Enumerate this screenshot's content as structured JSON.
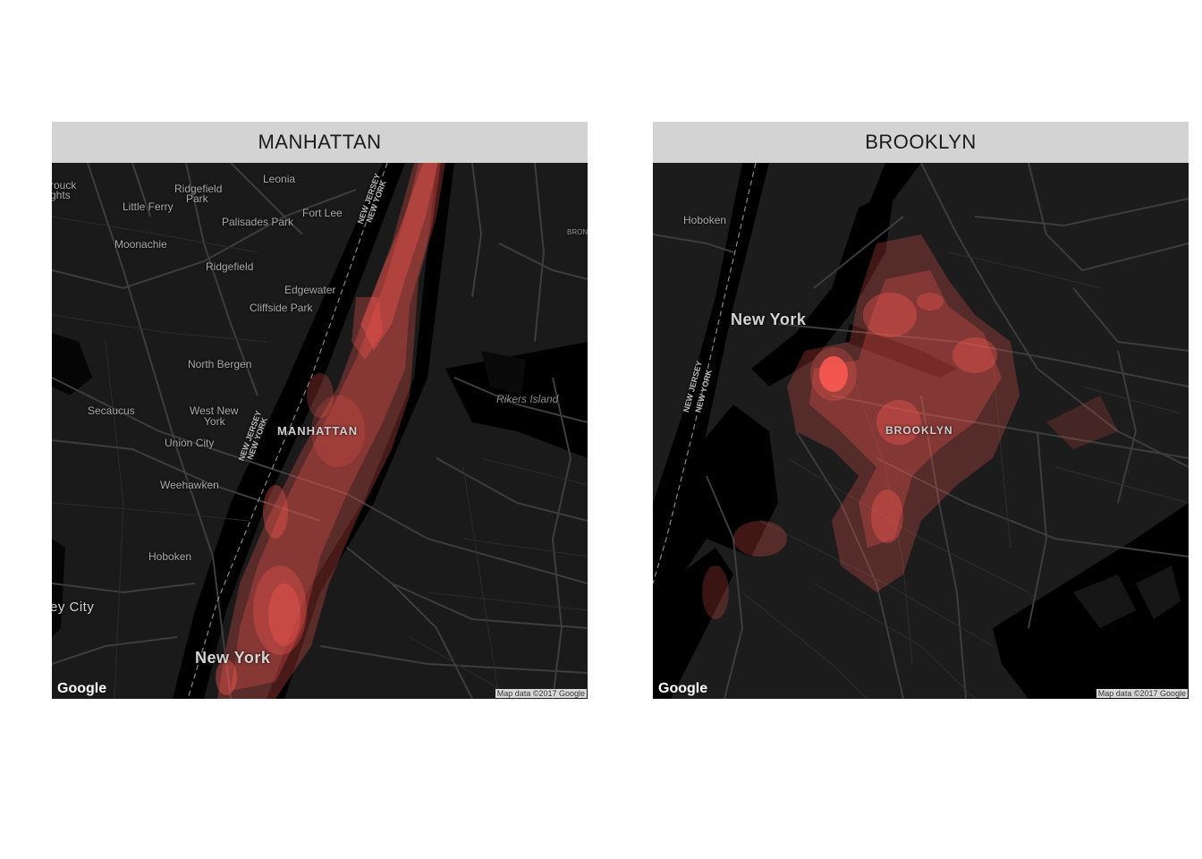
{
  "panels": [
    {
      "title": "MANHATTAN",
      "labels": {
        "l1": "rouck",
        "l2": "ghts",
        "l3": "Ridgefield",
        "l4": "Park",
        "l5": "Leonia",
        "l6": "Little Ferry",
        "l7": "Palisades Park",
        "l8": "Fort Lee",
        "l9": "Moonachie",
        "l10": "Ridgefield",
        "l11": "Edgewater",
        "l12": "Cliffside Park",
        "l13": "North Bergen",
        "l14": "Secaucus",
        "l15": "West New",
        "l16": "York",
        "l17": "Union City",
        "l18": "Weehawken",
        "l19": "Hoboken",
        "l20": "ey City",
        "l21": "Rikers Island",
        "l22": "BRON",
        "l23": "MANHATTAN",
        "l24": "New York",
        "b1": "NEW JERSEY",
        "b2": "NEW YORK",
        "b3": "NEW JERSEY",
        "b4": "NEW YORK"
      },
      "logo": "Google",
      "attribution": "Map data ©2017 Google"
    },
    {
      "title": "BROOKLYN",
      "labels": {
        "l1": "Hoboken",
        "l2": "New York",
        "l3": "BROOKLYN",
        "b1": "NEW JERSEY",
        "b2": "NEW YORK"
      },
      "logo": "Google",
      "attribution": "Map data ©2017 Google"
    }
  ],
  "colors": {
    "map_background": "#141414",
    "water": "#000000",
    "roads": "#3a3a3a",
    "density": "#ff5a52",
    "strip_background": "#d3d3d3"
  }
}
